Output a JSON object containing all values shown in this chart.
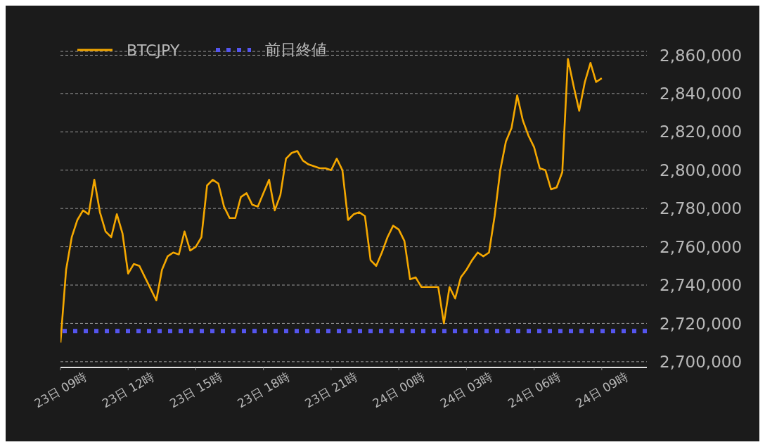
{
  "chart_data": {
    "type": "line",
    "legend": "top left",
    "grid": "y",
    "marker": "none",
    "line_style": "solid",
    "categories": [
      "23日 09時",
      null,
      null,
      null,
      null,
      null,
      null,
      null,
      null,
      null,
      null,
      null,
      "23日 12時",
      null,
      null,
      null,
      null,
      null,
      null,
      null,
      null,
      null,
      null,
      null,
      "23日 15時",
      null,
      null,
      null,
      null,
      null,
      null,
      null,
      null,
      null,
      null,
      null,
      "23日 18時",
      null,
      null,
      null,
      null,
      null,
      null,
      null,
      null,
      null,
      null,
      null,
      "23日 21時",
      null,
      null,
      null,
      null,
      null,
      null,
      null,
      null,
      null,
      null,
      null,
      "24日 00時",
      null,
      null,
      null,
      null,
      null,
      null,
      null,
      null,
      null,
      null,
      null,
      "24日 03時",
      null,
      null,
      null,
      null,
      null,
      null,
      null,
      null,
      null,
      null,
      null,
      "24日 06時",
      null,
      null,
      null,
      null,
      null,
      null,
      null,
      null,
      null,
      null,
      null,
      "24日 09時",
      null,
      null,
      null,
      null,
      null,
      null,
      null,
      null
    ],
    "ylim": [
      2697000,
      2862000
    ],
    "yticks": [
      {
        "value": 2700000,
        "label": "2,700,000"
      },
      {
        "value": 2720000,
        "label": "2,720,000"
      },
      {
        "value": 2740000,
        "label": "2,740,000"
      },
      {
        "value": 2760000,
        "label": "2,760,000"
      },
      {
        "value": 2780000,
        "label": "2,780,000"
      },
      {
        "value": 2800000,
        "label": "2,800,000"
      },
      {
        "value": 2820000,
        "label": "2,820,000"
      },
      {
        "value": 2840000,
        "label": "2,840,000"
      },
      {
        "value": 2860000,
        "label": "2,860,000"
      }
    ],
    "ref_lines": [
      {
        "axis": "y",
        "value": 2716000,
        "label": "前日終値",
        "color": "#5555ee",
        "line_style": "dotted"
      }
    ],
    "series": [
      {
        "name": "BTCJPY",
        "color": "#f5a800",
        "values": [
          2710000,
          2748000,
          2765000,
          2774000,
          2779000,
          2777000,
          2795000,
          2778000,
          2768000,
          2765000,
          2777000,
          2767000,
          2746000,
          2751000,
          2750000,
          2744000,
          2738000,
          2732000,
          2748000,
          2755000,
          2757000,
          2756000,
          2768000,
          2758000,
          2760000,
          2765000,
          2792000,
          2795000,
          2793000,
          2781000,
          2775000,
          2775000,
          2786000,
          2788000,
          2782000,
          2781000,
          2788000,
          2795000,
          2779000,
          2787000,
          2806000,
          2809000,
          2810000,
          2805000,
          2803000,
          2802000,
          2801000,
          2801000,
          2800000,
          2806000,
          2800000,
          2774000,
          2777000,
          2778000,
          2776000,
          2753000,
          2750000,
          2757000,
          2765000,
          2771000,
          2769000,
          2763000,
          2743000,
          2744000,
          2739000,
          2739000,
          2739000,
          2739000,
          2720000,
          2739000,
          2733000,
          2744000,
          2748000,
          2753000,
          2757000,
          2755000,
          2757000,
          2776000,
          2800000,
          2815000,
          2822000,
          2839000,
          2826000,
          2818000,
          2812000,
          2801000,
          2800000,
          2790000,
          2791000,
          2799000,
          2858000,
          2844000,
          2831000,
          2846000,
          2856000,
          2846000,
          2848000,
          null,
          null,
          null,
          null,
          null,
          null,
          null,
          null
        ]
      }
    ]
  }
}
